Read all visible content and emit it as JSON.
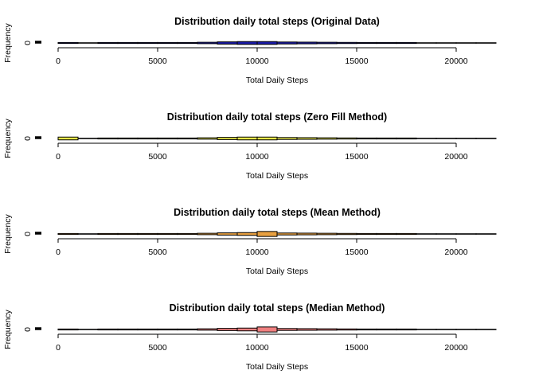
{
  "chart_data": [
    {
      "type": "bar",
      "title": "Distribution daily total steps (Original Data)",
      "xlabel": "Total Daily Steps",
      "ylabel": "Frequency",
      "x_ticks": [
        0,
        5000,
        10000,
        15000,
        20000
      ],
      "y_ticks": [
        0
      ],
      "xlim": [
        -1000,
        23000
      ],
      "bin_width": 1000,
      "bin_start": 0,
      "fill": "#1a1aa8",
      "values": [
        2,
        0,
        1,
        1,
        2,
        3,
        3,
        5,
        8,
        10,
        10,
        7,
        6,
        5,
        4,
        3,
        1,
        1,
        0,
        0,
        0,
        0
      ]
    },
    {
      "type": "bar",
      "title": "Distribution daily total steps (Zero Fill Method)",
      "xlabel": "Total Daily Steps",
      "ylabel": "Frequency",
      "x_ticks": [
        0,
        5000,
        10000,
        15000,
        20000
      ],
      "y_ticks": [
        0
      ],
      "xlim": [
        -1000,
        23000
      ],
      "bin_width": 1000,
      "bin_start": 0,
      "fill": "#e8e84a",
      "values": [
        10,
        0,
        1,
        1,
        2,
        3,
        3,
        5,
        8,
        10,
        10,
        7,
        6,
        5,
        4,
        3,
        1,
        1,
        0,
        0,
        0,
        0
      ]
    },
    {
      "type": "bar",
      "title": "Distribution daily total steps (Mean Method)",
      "xlabel": "Total Daily Steps",
      "ylabel": "Frequency",
      "x_ticks": [
        0,
        5000,
        10000,
        15000,
        20000
      ],
      "y_ticks": [
        0
      ],
      "xlim": [
        -1000,
        23000
      ],
      "bin_width": 1000,
      "bin_start": 0,
      "fill": "#e8a040",
      "values": [
        2,
        0,
        1,
        1,
        2,
        3,
        3,
        5,
        8,
        10,
        18,
        7,
        6,
        5,
        4,
        3,
        1,
        1,
        0,
        0,
        0,
        0
      ]
    },
    {
      "type": "bar",
      "title": "Distribution daily total steps (Median Method)",
      "xlabel": "Total Daily Steps",
      "ylabel": "Frequency",
      "x_ticks": [
        0,
        5000,
        10000,
        15000,
        20000
      ],
      "y_ticks": [
        0
      ],
      "xlim": [
        -1000,
        23000
      ],
      "bin_width": 1000,
      "bin_start": 0,
      "fill": "#f08080",
      "values": [
        2,
        0,
        1,
        1,
        2,
        3,
        3,
        5,
        8,
        10,
        18,
        7,
        6,
        5,
        4,
        3,
        1,
        1,
        0,
        0,
        0,
        0
      ]
    }
  ]
}
